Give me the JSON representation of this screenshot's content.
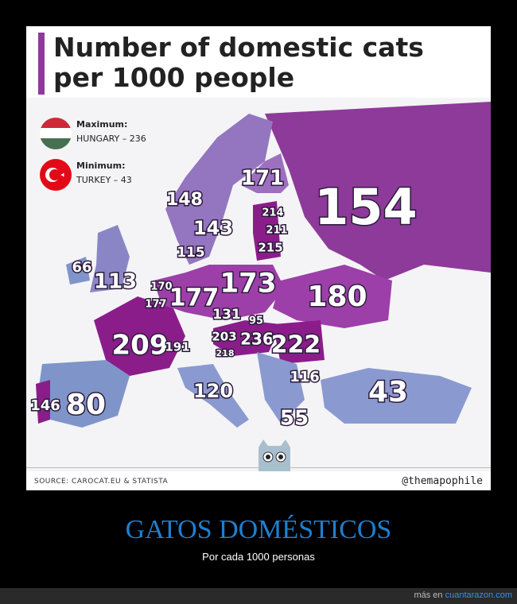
{
  "title": "Number of domestic cats per 1000 people",
  "legend": {
    "max_label": "Maximum:",
    "max_value": "HUNGARY – 236",
    "min_label": "Minimum:",
    "min_value": "TURKEY – 43"
  },
  "map_labels": [
    154,
    171,
    214,
    211,
    215,
    148,
    143,
    115,
    66,
    113,
    170,
    177,
    177,
    173,
    180,
    131,
    95,
    203,
    218,
    236,
    222,
    209,
    191,
    116,
    43,
    120,
    146,
    80,
    55
  ],
  "source": "SOURCE: CAROCAT.EU & STATISTA",
  "credit": "@themapophile",
  "caption": {
    "title": "GATOS DOMÉSTICOS",
    "subtitle": "Por cada 1000 personas"
  },
  "footer": {
    "text": "más en",
    "link": "cuantarazon.com"
  }
}
